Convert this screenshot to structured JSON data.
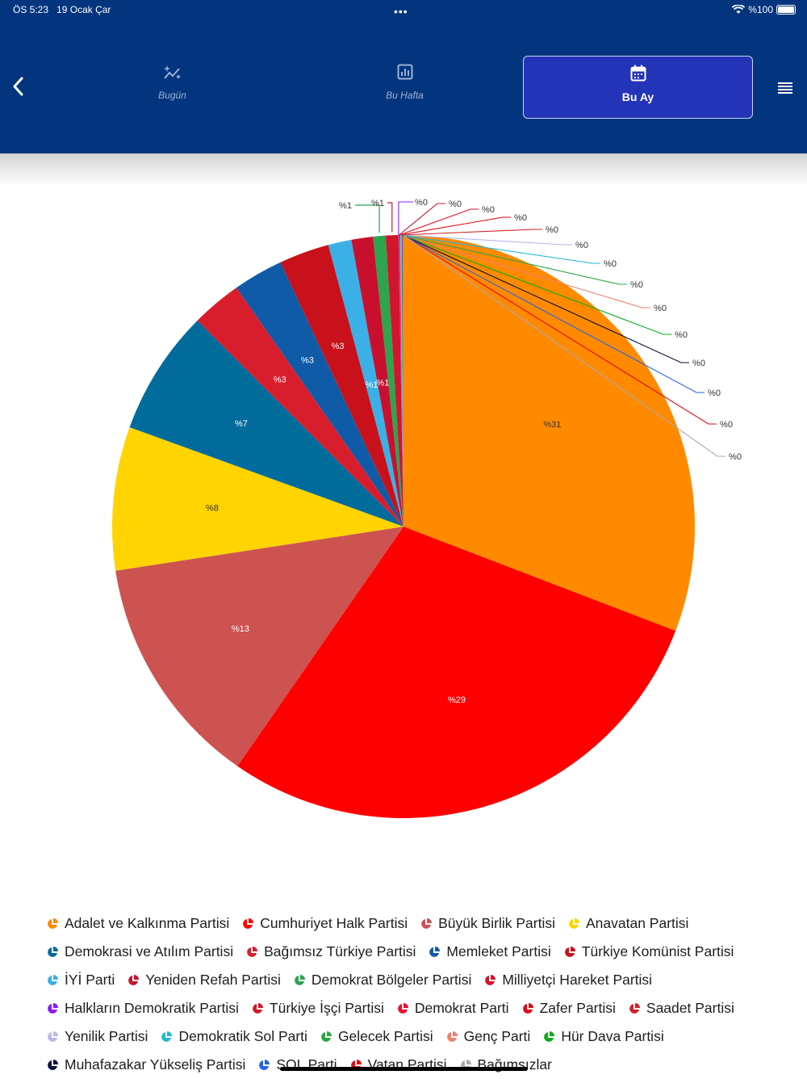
{
  "status_bar": {
    "time": "ÖS 5:23",
    "date": "19 Ocak Çar",
    "battery": "%100",
    "dots": "•••"
  },
  "tabs": [
    {
      "label": "Bugün",
      "icon": "sparkle-chart-icon",
      "active": false
    },
    {
      "label": "Bu Hafta",
      "icon": "bar-chart-icon",
      "active": false
    },
    {
      "label": "Bu Ay",
      "icon": "calendar-icon",
      "active": true
    }
  ],
  "chart_data": {
    "type": "pie",
    "title": "",
    "label_prefix": "%",
    "slices": [
      {
        "name": "Adalet ve Kalkınma Partisi",
        "value": 31,
        "label": "%31",
        "color": "#ff8a00"
      },
      {
        "name": "Cumhuriyet Halk Partisi",
        "value": 29,
        "label": "%29",
        "color": "#ff0000"
      },
      {
        "name": "Büyük Birlik Partisi",
        "value": 13,
        "label": "%13",
        "color": "#cd5350"
      },
      {
        "name": "Anavatan Partisi",
        "value": 8,
        "label": "%8",
        "color": "#ffd400"
      },
      {
        "name": "Demokrasi ve Atılım Partisi",
        "value": 7,
        "label": "%7",
        "color": "#016b9b"
      },
      {
        "name": "Bağımsız Türkiye Partisi",
        "value": 2.8,
        "label": "%3",
        "color": "#d81e2c"
      },
      {
        "name": "Memleket Partisi",
        "value": 2.8,
        "label": "%3",
        "color": "#105ba7"
      },
      {
        "name": "Türkiye Komünist Partisi",
        "value": 2.8,
        "label": "%3",
        "color": "#c8111b"
      },
      {
        "name": "İYİ Parti",
        "value": 1.3,
        "label": "%1",
        "color": "#3ab0e6"
      },
      {
        "name": "Yeniden Refah Partisi",
        "value": 1.2,
        "label": "%1",
        "color": "#c8102e"
      },
      {
        "name": "Demokrat Bölgeler Partisi",
        "value": 0.7,
        "label": "%1",
        "color": "#2ea44f"
      },
      {
        "name": "Milliyetçi Hareket Partisi",
        "value": 0.7,
        "label": "%1",
        "color": "#d2142c"
      },
      {
        "name": "Halkların Demokratik Partisi",
        "value": 0.02,
        "label": "%0",
        "color": "#8b1cf0"
      },
      {
        "name": "Türkiye İşçi Partisi",
        "value": 0.02,
        "label": "%0",
        "color": "#d01a2f"
      },
      {
        "name": "Demokrat Parti",
        "value": 0.02,
        "label": "%0",
        "color": "#e8112d"
      },
      {
        "name": "Zafer Partisi",
        "value": 0.02,
        "label": "%0",
        "color": "#dc0a17"
      },
      {
        "name": "Saadet Partisi",
        "value": 0.02,
        "label": "%0",
        "color": "#d2232a"
      },
      {
        "name": "Yenilik Partisi",
        "value": 0.02,
        "label": "%0",
        "color": "#b9b6ec"
      },
      {
        "name": "Demokratik Sol Parti",
        "value": 0.02,
        "label": "%0",
        "color": "#21b8d8"
      },
      {
        "name": "Gelecek Partisi",
        "value": 0.02,
        "label": "%0",
        "color": "#28a745"
      },
      {
        "name": "Genç Parti",
        "value": 0.02,
        "label": "%0",
        "color": "#f08070"
      },
      {
        "name": "Hür Dava Partisi",
        "value": 0.02,
        "label": "%0",
        "color": "#0cad18"
      },
      {
        "name": "Muhafazakar Yükseliş Partisi",
        "value": 0.02,
        "label": "%0",
        "color": "#0a0f3d"
      },
      {
        "name": "SOL Parti",
        "value": 0.02,
        "label": "%0",
        "color": "#2563eb"
      },
      {
        "name": "Vatan Partisi",
        "value": 0.02,
        "label": "%0",
        "color": "#e30a17"
      },
      {
        "name": "Bağımsızlar",
        "value": 0.02,
        "label": "%0",
        "color": "#aaaaaa"
      }
    ],
    "legend": {
      "position": "bottom"
    }
  }
}
